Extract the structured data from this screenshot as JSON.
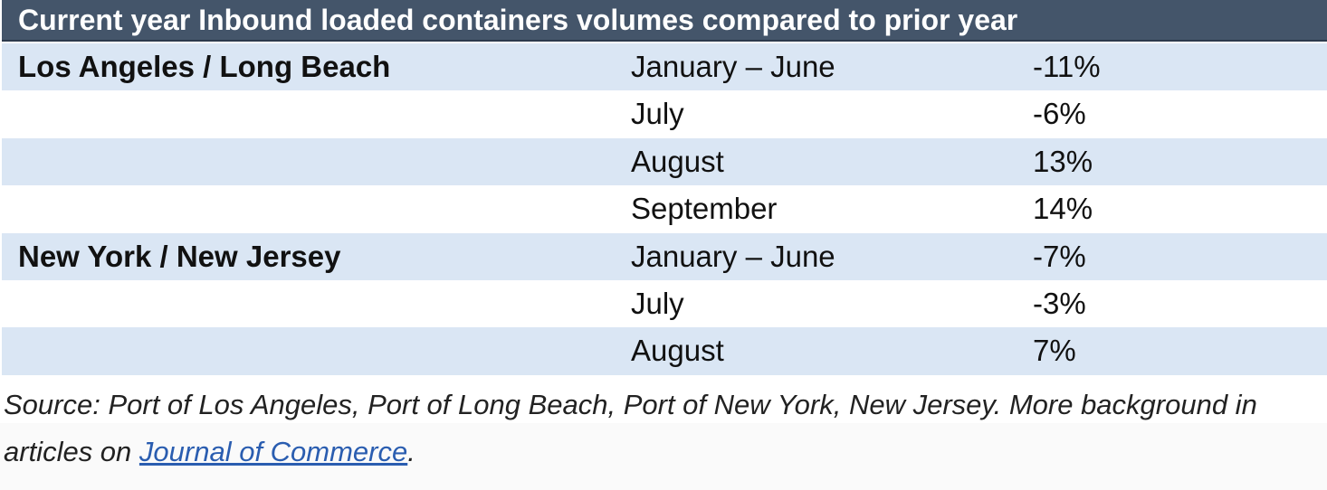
{
  "table": {
    "title": "Current year Inbound loaded containers volumes compared to prior year",
    "rows": [
      {
        "port": "Los Angeles / Long Beach",
        "period": "January – June",
        "change": "-11%"
      },
      {
        "port": "",
        "period": "July",
        "change": "-6%"
      },
      {
        "port": "",
        "period": "August",
        "change": "13%"
      },
      {
        "port": "",
        "period": "September",
        "change": "14%"
      },
      {
        "port": "New York / New Jersey",
        "period": "January – June",
        "change": "-7%"
      },
      {
        "port": "",
        "period": "July",
        "change": "-3%"
      },
      {
        "port": "",
        "period": "August",
        "change": "7%"
      }
    ]
  },
  "source": {
    "text": "Source: Port of Los Angeles, Port of Long Beach, Port of New York, New Jersey.  More background in articles on ",
    "link_text": "Journal of Commerce",
    "suffix": "."
  },
  "colors": {
    "header_bg": "#44556a",
    "row_shade": "#dae6f4",
    "link": "#2a5db0"
  }
}
